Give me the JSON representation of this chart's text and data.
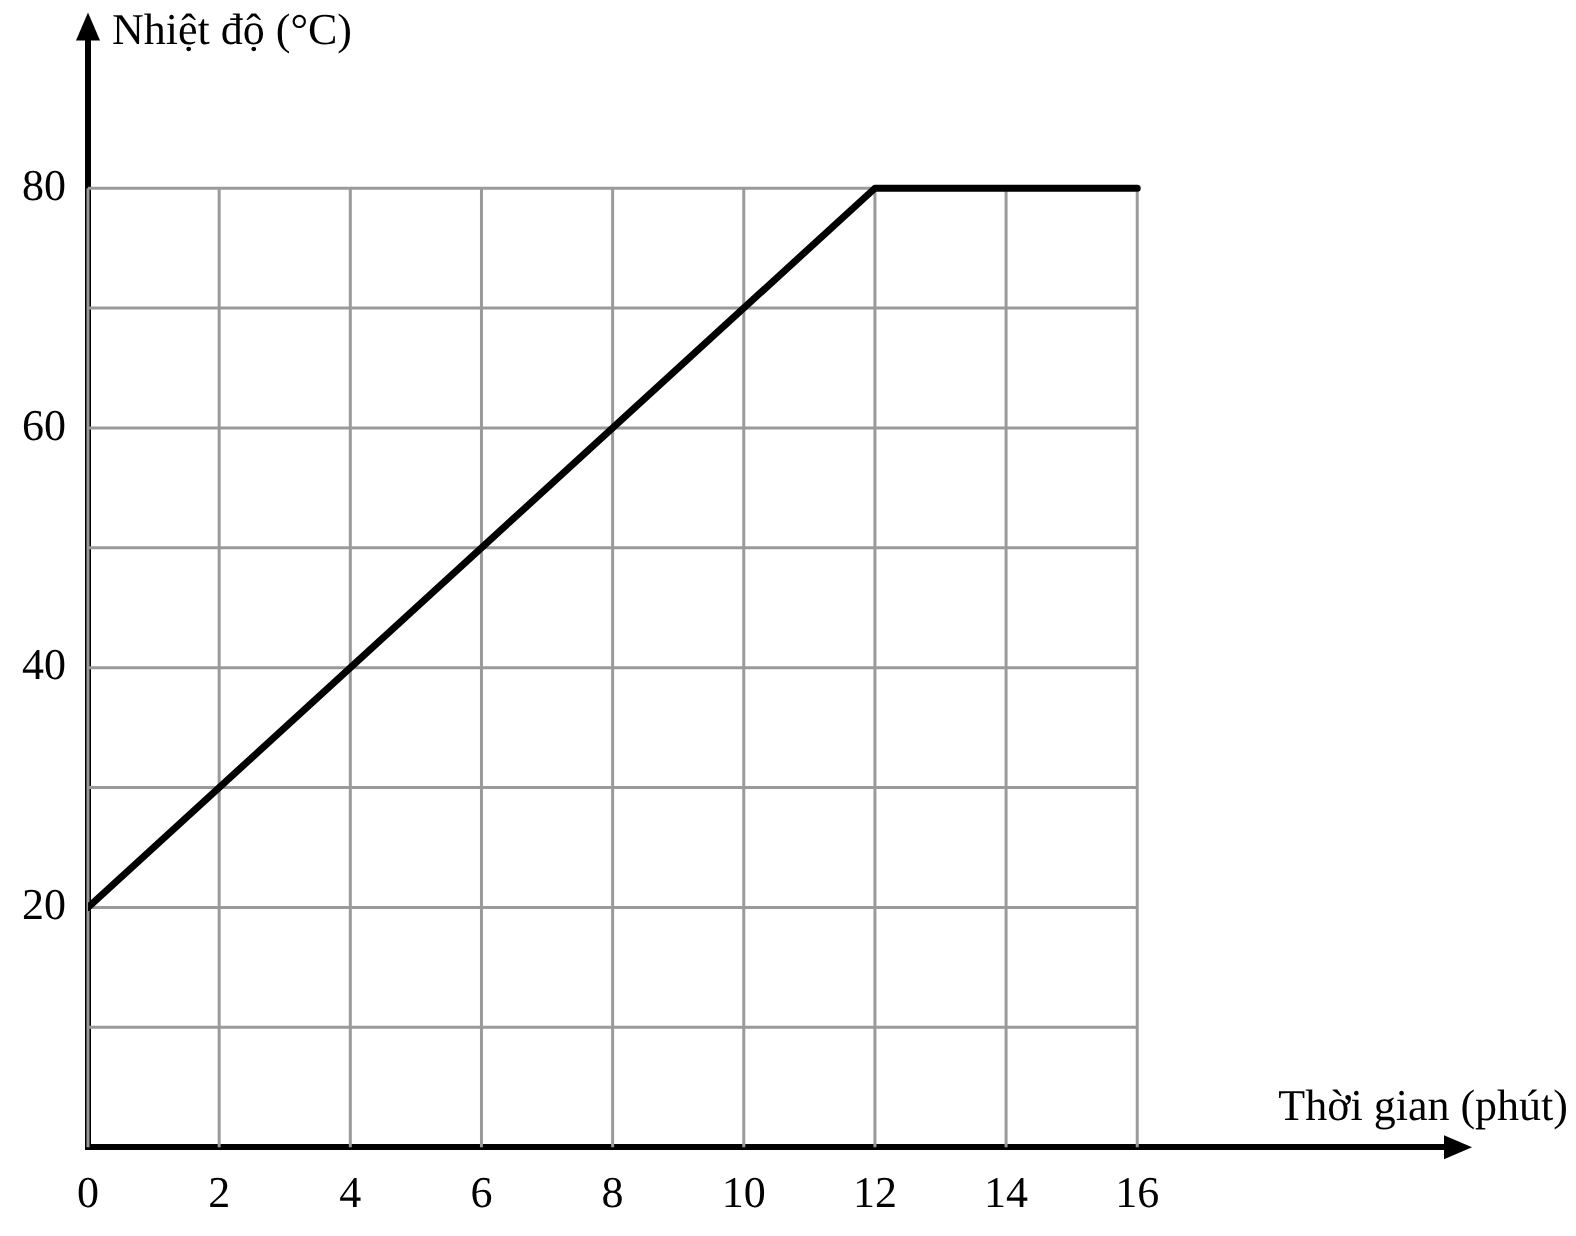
{
  "chart_data": {
    "type": "line",
    "xlabel": "Thời gian (phút)",
    "ylabel": "Nhiệt độ (°C)",
    "x": [
      0,
      12,
      16
    ],
    "series": [
      {
        "color": "#000000",
        "values": [
          20,
          80,
          80
        ]
      }
    ],
    "xlim": [
      0,
      20.8
    ],
    "ylim": [
      0,
      93
    ],
    "xticks": [
      0,
      2,
      4,
      6,
      8,
      10,
      12,
      14,
      16
    ],
    "yticks": [
      {
        "value": 10,
        "label": null
      },
      20,
      {
        "value": 30,
        "label": null
      },
      40,
      {
        "value": 50,
        "label": null
      },
      60,
      {
        "value": 70,
        "label": null
      },
      80
    ],
    "grid": true,
    "legend": false,
    "marker": "none",
    "line_style": "solid"
  }
}
